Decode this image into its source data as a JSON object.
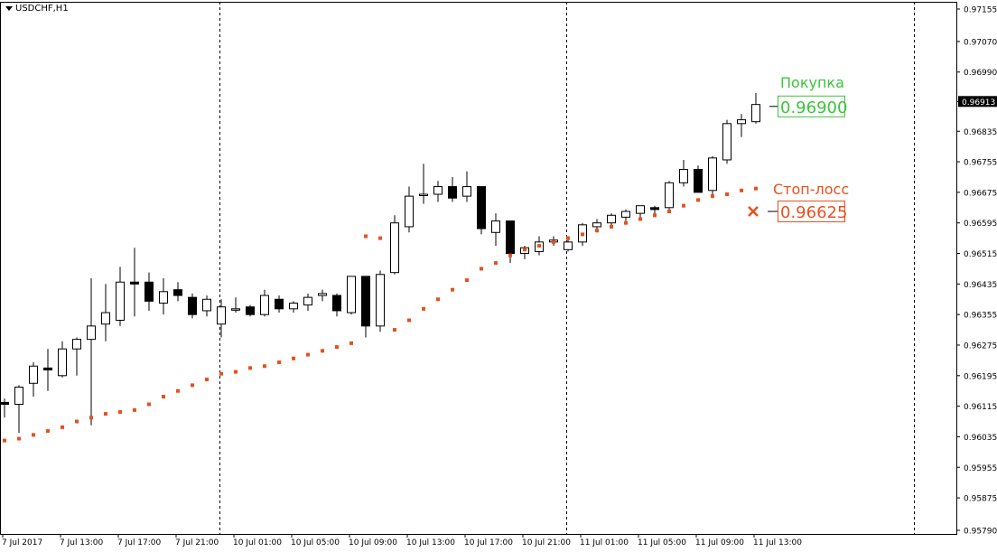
{
  "window": {
    "symbol_title": "USDCHF,H1"
  },
  "colors": {
    "background": "#ffffff",
    "grid_separator": "#000000",
    "candle_up_fill": "#ffffff",
    "candle_down_fill": "#000000",
    "sar": "#e8501e",
    "buy": "#3cc43c",
    "stop": "#e8501e"
  },
  "chart_data": {
    "type": "candlestick",
    "symbol": "USDCHF",
    "timeframe": "H1",
    "ylim": [
      0.9579,
      0.97155
    ],
    "yticks": [
      "0.97155",
      "0.97070",
      "0.96990",
      "0.96913",
      "0.96835",
      "0.96755",
      "0.96675",
      "0.96595",
      "0.96515",
      "0.96435",
      "0.96355",
      "0.96275",
      "0.96195",
      "0.96115",
      "0.96035",
      "0.95955",
      "0.95875",
      "0.95790"
    ],
    "current_price": "0.96913",
    "xticks": [
      "7 Jul 2017",
      "7 Jul 13:00",
      "7 Jul 17:00",
      "7 Jul 21:00",
      "10 Jul 01:00",
      "10 Jul 05:00",
      "10 Jul 09:00",
      "10 Jul 13:00",
      "10 Jul 17:00",
      "10 Jul 21:00",
      "11 Jul 01:00",
      "11 Jul 05:00",
      "11 Jul 09:00",
      "11 Jul 13:00"
    ],
    "candles": [
      {
        "o": 0.96125,
        "h": 0.96135,
        "l": 0.96085,
        "c": 0.9612
      },
      {
        "o": 0.9612,
        "h": 0.9617,
        "l": 0.96045,
        "c": 0.96165
      },
      {
        "o": 0.96175,
        "h": 0.9623,
        "l": 0.9614,
        "c": 0.9622
      },
      {
        "o": 0.96215,
        "h": 0.96265,
        "l": 0.96155,
        "c": 0.9621
      },
      {
        "o": 0.96195,
        "h": 0.96285,
        "l": 0.9619,
        "c": 0.96265
      },
      {
        "o": 0.96265,
        "h": 0.96295,
        "l": 0.96195,
        "c": 0.9629
      },
      {
        "o": 0.9629,
        "h": 0.9645,
        "l": 0.96065,
        "c": 0.96325
      },
      {
        "o": 0.9633,
        "h": 0.96435,
        "l": 0.96285,
        "c": 0.9636
      },
      {
        "o": 0.9634,
        "h": 0.9648,
        "l": 0.96325,
        "c": 0.9644
      },
      {
        "o": 0.9644,
        "h": 0.9653,
        "l": 0.9635,
        "c": 0.96435
      },
      {
        "o": 0.9644,
        "h": 0.96465,
        "l": 0.96365,
        "c": 0.9639
      },
      {
        "o": 0.96385,
        "h": 0.9645,
        "l": 0.96355,
        "c": 0.96415
      },
      {
        "o": 0.9642,
        "h": 0.9644,
        "l": 0.9639,
        "c": 0.96405
      },
      {
        "o": 0.964,
        "h": 0.9641,
        "l": 0.96345,
        "c": 0.96355
      },
      {
        "o": 0.96365,
        "h": 0.96405,
        "l": 0.9635,
        "c": 0.96395
      },
      {
        "o": 0.9633,
        "h": 0.96395,
        "l": 0.96295,
        "c": 0.96375
      },
      {
        "o": 0.9637,
        "h": 0.964,
        "l": 0.9636,
        "c": 0.9637
      },
      {
        "o": 0.96375,
        "h": 0.9638,
        "l": 0.9635,
        "c": 0.96355
      },
      {
        "o": 0.96355,
        "h": 0.9642,
        "l": 0.9635,
        "c": 0.96405
      },
      {
        "o": 0.96395,
        "h": 0.96405,
        "l": 0.9636,
        "c": 0.9637
      },
      {
        "o": 0.9637,
        "h": 0.9639,
        "l": 0.9636,
        "c": 0.96385
      },
      {
        "o": 0.9638,
        "h": 0.9641,
        "l": 0.96365,
        "c": 0.964
      },
      {
        "o": 0.96405,
        "h": 0.9642,
        "l": 0.9639,
        "c": 0.9641
      },
      {
        "o": 0.96405,
        "h": 0.9641,
        "l": 0.9635,
        "c": 0.96365
      },
      {
        "o": 0.9636,
        "h": 0.96455,
        "l": 0.96355,
        "c": 0.96455
      },
      {
        "o": 0.96455,
        "h": 0.96455,
        "l": 0.96295,
        "c": 0.96325
      },
      {
        "o": 0.96325,
        "h": 0.9647,
        "l": 0.9631,
        "c": 0.9646
      },
      {
        "o": 0.96465,
        "h": 0.96615,
        "l": 0.9646,
        "c": 0.96595
      },
      {
        "o": 0.96585,
        "h": 0.9669,
        "l": 0.9657,
        "c": 0.96665
      },
      {
        "o": 0.9667,
        "h": 0.9675,
        "l": 0.96645,
        "c": 0.9667
      },
      {
        "o": 0.9667,
        "h": 0.96705,
        "l": 0.9665,
        "c": 0.9669
      },
      {
        "o": 0.9669,
        "h": 0.96715,
        "l": 0.9665,
        "c": 0.9666
      },
      {
        "o": 0.96665,
        "h": 0.9673,
        "l": 0.9665,
        "c": 0.9669
      },
      {
        "o": 0.9669,
        "h": 0.9669,
        "l": 0.96565,
        "c": 0.9658
      },
      {
        "o": 0.9657,
        "h": 0.9662,
        "l": 0.96535,
        "c": 0.966
      },
      {
        "o": 0.966,
        "h": 0.966,
        "l": 0.9649,
        "c": 0.96515
      },
      {
        "o": 0.96515,
        "h": 0.96535,
        "l": 0.965,
        "c": 0.9653
      },
      {
        "o": 0.9652,
        "h": 0.9656,
        "l": 0.9651,
        "c": 0.96545
      },
      {
        "o": 0.96545,
        "h": 0.9656,
        "l": 0.96535,
        "c": 0.9655
      },
      {
        "o": 0.96525,
        "h": 0.9656,
        "l": 0.9652,
        "c": 0.96545
      },
      {
        "o": 0.96545,
        "h": 0.96595,
        "l": 0.96535,
        "c": 0.9659
      },
      {
        "o": 0.96585,
        "h": 0.96605,
        "l": 0.9657,
        "c": 0.96595
      },
      {
        "o": 0.96595,
        "h": 0.9662,
        "l": 0.9658,
        "c": 0.96615
      },
      {
        "o": 0.9661,
        "h": 0.9663,
        "l": 0.966,
        "c": 0.96625
      },
      {
        "o": 0.9662,
        "h": 0.9664,
        "l": 0.96605,
        "c": 0.9664
      },
      {
        "o": 0.96635,
        "h": 0.9664,
        "l": 0.9661,
        "c": 0.9663
      },
      {
        "o": 0.96635,
        "h": 0.96705,
        "l": 0.9663,
        "c": 0.967
      },
      {
        "o": 0.967,
        "h": 0.9676,
        "l": 0.9669,
        "c": 0.96735
      },
      {
        "o": 0.96735,
        "h": 0.96745,
        "l": 0.96675,
        "c": 0.96675
      },
      {
        "o": 0.9668,
        "h": 0.9677,
        "l": 0.9666,
        "c": 0.96765
      },
      {
        "o": 0.9676,
        "h": 0.96865,
        "l": 0.9675,
        "c": 0.96855
      },
      {
        "o": 0.96855,
        "h": 0.9688,
        "l": 0.9682,
        "c": 0.96865
      },
      {
        "o": 0.9686,
        "h": 0.96935,
        "l": 0.96855,
        "c": 0.96905
      }
    ],
    "sar": [
      0.96025,
      0.9603,
      0.9604,
      0.9605,
      0.9606,
      0.96075,
      0.96085,
      0.96095,
      0.961,
      0.96105,
      0.9612,
      0.9614,
      0.96155,
      0.9617,
      0.96185,
      0.962,
      0.96205,
      0.96215,
      0.9622,
      0.9623,
      0.9624,
      0.9625,
      0.9626,
      0.9627,
      0.9628,
      0.9629,
      0.963,
      0.96315,
      0.9634,
      0.9637,
      0.96395,
      0.9642,
      0.96445,
      0.96475,
      0.9649,
      0.9651,
      0.96525,
      0.96535,
      0.96545,
      0.96555,
      0.96565,
      0.96575,
      0.96585,
      0.96595,
      0.96605,
      0.96615,
      0.96625,
      0.9664,
      0.96655,
      0.96665,
      0.9667,
      0.9668,
      0.96685
    ],
    "sar_gap_upper": [
      {
        "i": 25,
        "v": 0.9656
      },
      {
        "i": 26,
        "v": 0.96555
      }
    ],
    "buy": {
      "label": "Покупка",
      "price": "0.96900"
    },
    "stop": {
      "label": "Стоп-лосс",
      "price": "0.96625",
      "marker": "cross-icon"
    }
  }
}
